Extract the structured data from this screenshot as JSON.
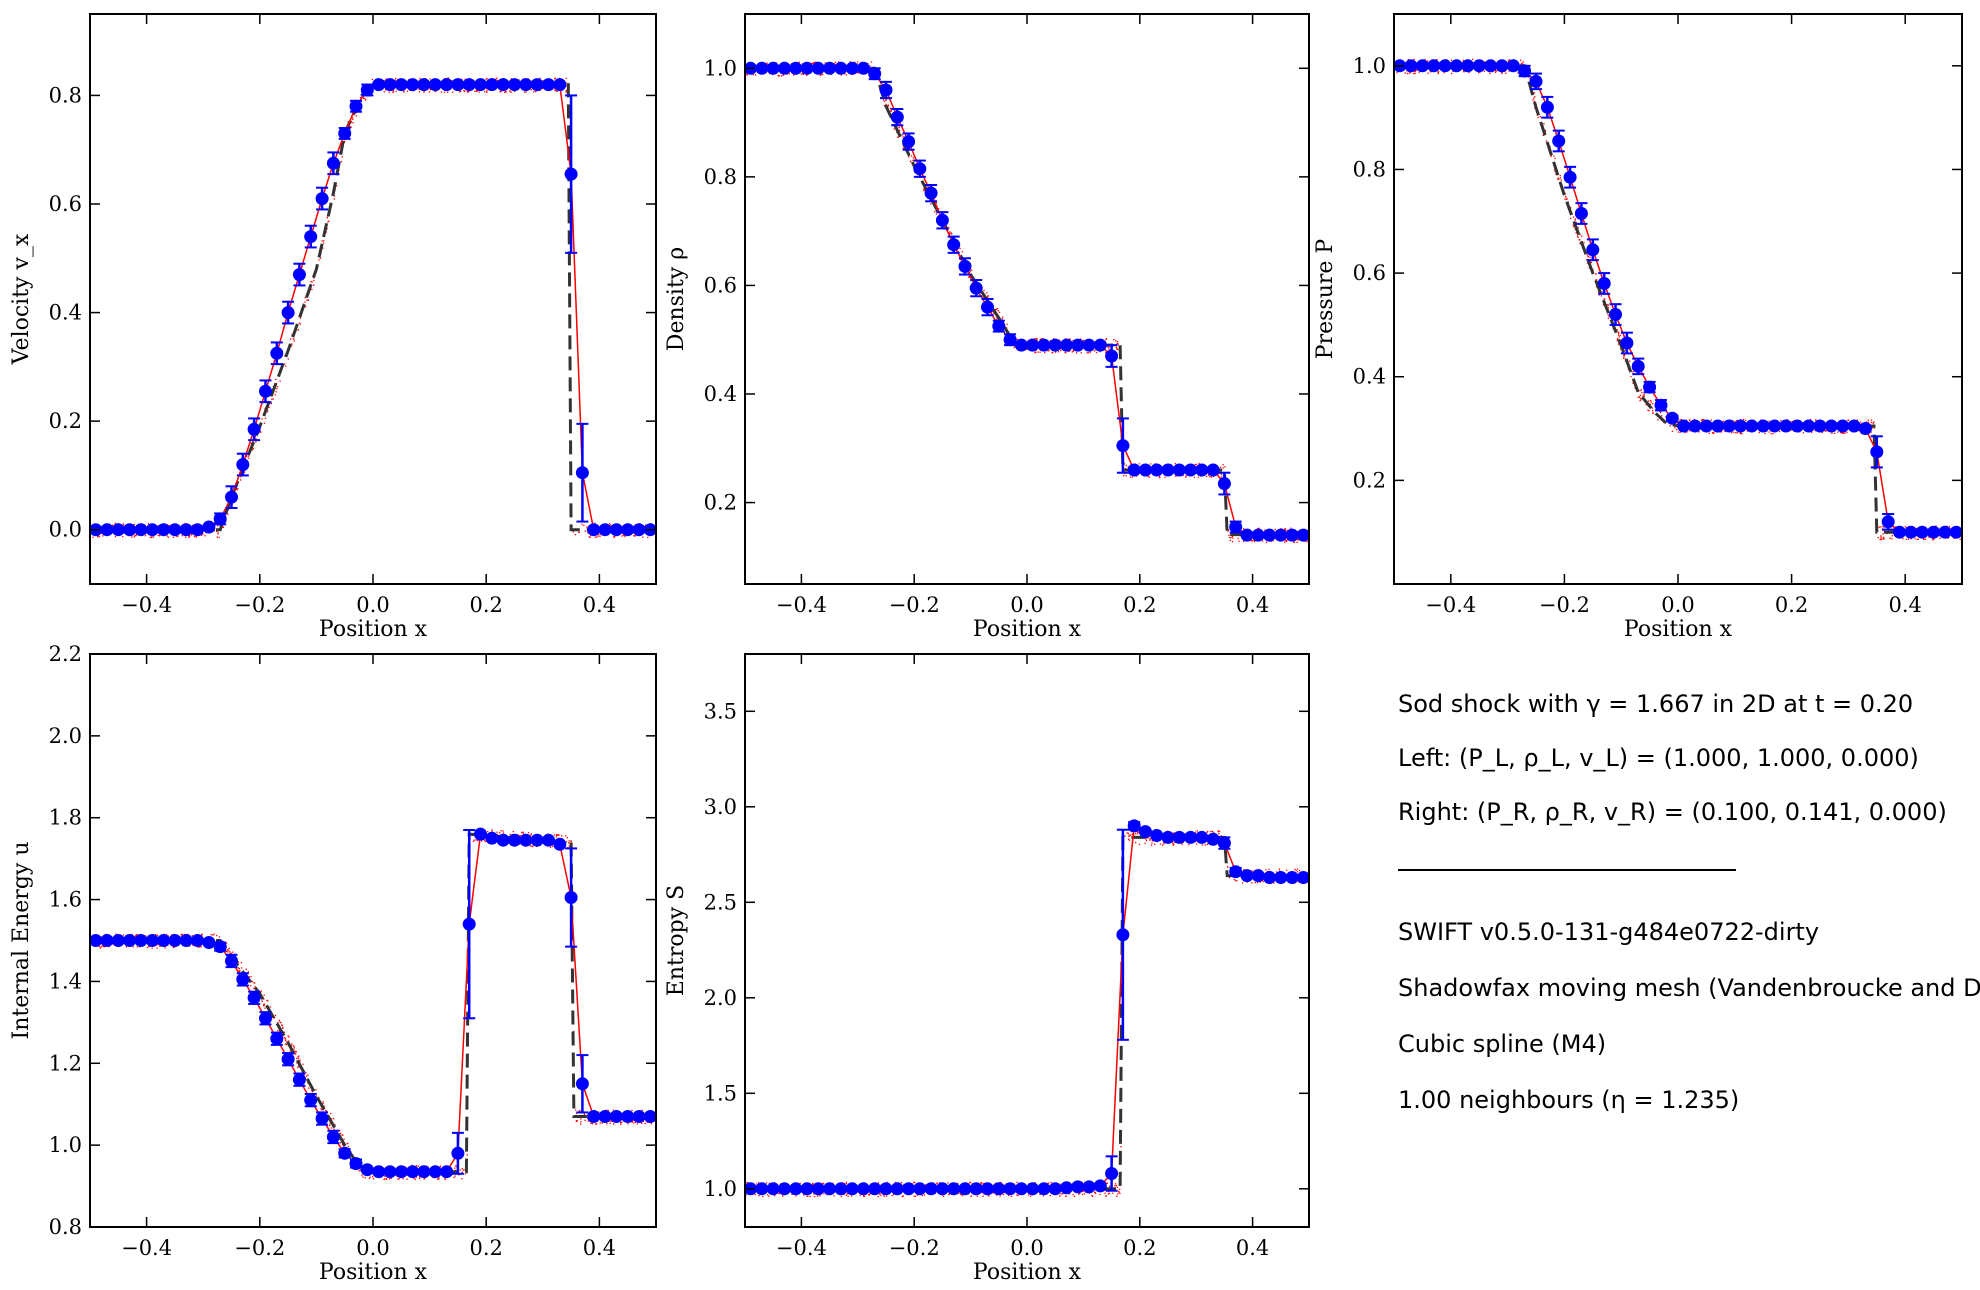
{
  "chart_data": [
    {
      "type": "scatter",
      "name": "velocity",
      "xlabel": "Position x",
      "ylabel": "Velocity v_x",
      "xlim": [
        -0.5,
        0.5
      ],
      "ylim": [
        -0.1,
        0.95
      ],
      "xticks": [
        -0.4,
        -0.2,
        0.0,
        0.2,
        0.4
      ],
      "yticks": [
        0.0,
        0.2,
        0.4,
        0.6,
        0.8
      ],
      "analytic": [
        [
          -0.5,
          0.0
        ],
        [
          -0.27,
          0.0
        ],
        [
          -0.25,
          0.06
        ],
        [
          -0.2,
          0.19
        ],
        [
          -0.15,
          0.33
        ],
        [
          -0.1,
          0.48
        ],
        [
          -0.07,
          0.62
        ],
        [
          -0.05,
          0.73
        ],
        [
          -0.02,
          0.8
        ],
        [
          0.0,
          0.82
        ],
        [
          0.34,
          0.82
        ],
        [
          0.345,
          0.82
        ],
        [
          0.35,
          0.0
        ],
        [
          0.5,
          0.0
        ]
      ],
      "series": [
        {
          "name": "binned",
          "x": [
            -0.49,
            -0.47,
            -0.45,
            -0.43,
            -0.41,
            -0.39,
            -0.37,
            -0.35,
            -0.33,
            -0.31,
            -0.29,
            -0.27,
            -0.25,
            -0.23,
            -0.21,
            -0.19,
            -0.17,
            -0.15,
            -0.13,
            -0.11,
            -0.09,
            -0.07,
            -0.05,
            -0.03,
            -0.01,
            0.01,
            0.03,
            0.05,
            0.07,
            0.09,
            0.11,
            0.13,
            0.15,
            0.17,
            0.19,
            0.21,
            0.23,
            0.25,
            0.27,
            0.29,
            0.31,
            0.33,
            0.35,
            0.37,
            0.39,
            0.41,
            0.43,
            0.45,
            0.47,
            0.49
          ],
          "y": [
            0.0,
            0.0,
            0.0,
            0.0,
            0.0,
            0.0,
            0.0,
            0.0,
            0.0,
            0.0,
            0.005,
            0.02,
            0.06,
            0.12,
            0.185,
            0.255,
            0.325,
            0.4,
            0.47,
            0.54,
            0.61,
            0.675,
            0.73,
            0.78,
            0.81,
            0.82,
            0.82,
            0.82,
            0.82,
            0.82,
            0.82,
            0.82,
            0.82,
            0.82,
            0.82,
            0.82,
            0.82,
            0.82,
            0.82,
            0.82,
            0.82,
            0.82,
            0.655,
            0.105,
            0.0,
            0.0,
            0.0,
            0.0,
            0.0,
            0.0
          ],
          "err": [
            0,
            0,
            0,
            0,
            0,
            0,
            0,
            0,
            0,
            0,
            0,
            0.01,
            0.02,
            0.02,
            0.02,
            0.02,
            0.02,
            0.02,
            0.02,
            0.02,
            0.02,
            0.02,
            0.01,
            0.01,
            0.01,
            0,
            0,
            0,
            0,
            0,
            0,
            0,
            0,
            0,
            0,
            0,
            0,
            0,
            0,
            0,
            0,
            0,
            0.145,
            0.09,
            0,
            0,
            0,
            0,
            0,
            0
          ]
        }
      ]
    },
    {
      "type": "scatter",
      "name": "density",
      "xlabel": "Position x",
      "ylabel": "Density ρ",
      "xlim": [
        -0.5,
        0.5
      ],
      "ylim": [
        0.05,
        1.1
      ],
      "xticks": [
        -0.4,
        -0.2,
        0.0,
        0.2,
        0.4
      ],
      "yticks": [
        0.2,
        0.4,
        0.6,
        0.8,
        1.0
      ],
      "analytic": [
        [
          -0.5,
          1.0
        ],
        [
          -0.27,
          1.0
        ],
        [
          -0.25,
          0.93
        ],
        [
          -0.2,
          0.82
        ],
        [
          -0.15,
          0.72
        ],
        [
          -0.1,
          0.62
        ],
        [
          -0.05,
          0.54
        ],
        [
          -0.02,
          0.49
        ],
        [
          0.0,
          0.49
        ],
        [
          0.165,
          0.49
        ],
        [
          0.17,
          0.26
        ],
        [
          0.35,
          0.26
        ],
        [
          0.355,
          0.141
        ],
        [
          0.5,
          0.141
        ]
      ],
      "series": [
        {
          "name": "binned",
          "x": [
            -0.49,
            -0.47,
            -0.45,
            -0.43,
            -0.41,
            -0.39,
            -0.37,
            -0.35,
            -0.33,
            -0.31,
            -0.29,
            -0.27,
            -0.25,
            -0.23,
            -0.21,
            -0.19,
            -0.17,
            -0.15,
            -0.13,
            -0.11,
            -0.09,
            -0.07,
            -0.05,
            -0.03,
            -0.01,
            0.01,
            0.03,
            0.05,
            0.07,
            0.09,
            0.11,
            0.13,
            0.15,
            0.17,
            0.19,
            0.21,
            0.23,
            0.25,
            0.27,
            0.29,
            0.31,
            0.33,
            0.35,
            0.37,
            0.39,
            0.41,
            0.43,
            0.45,
            0.47,
            0.49
          ],
          "y": [
            1.0,
            1.0,
            1.0,
            1.0,
            1.0,
            1.0,
            1.0,
            1.0,
            1.0,
            1.0,
            1.0,
            0.99,
            0.96,
            0.91,
            0.865,
            0.815,
            0.77,
            0.72,
            0.675,
            0.635,
            0.595,
            0.56,
            0.525,
            0.5,
            0.49,
            0.49,
            0.49,
            0.49,
            0.49,
            0.49,
            0.49,
            0.49,
            0.47,
            0.305,
            0.26,
            0.26,
            0.26,
            0.26,
            0.26,
            0.26,
            0.26,
            0.26,
            0.235,
            0.155,
            0.14,
            0.14,
            0.14,
            0.14,
            0.14,
            0.14
          ],
          "err": [
            0,
            0,
            0,
            0,
            0,
            0,
            0,
            0,
            0,
            0,
            0,
            0.01,
            0.015,
            0.015,
            0.015,
            0.015,
            0.015,
            0.015,
            0.015,
            0.015,
            0.015,
            0.015,
            0.01,
            0.01,
            0,
            0,
            0,
            0,
            0,
            0,
            0,
            0,
            0.02,
            0.05,
            0,
            0,
            0,
            0,
            0,
            0,
            0,
            0,
            0.02,
            0.01,
            0,
            0,
            0,
            0,
            0,
            0
          ]
        }
      ]
    },
    {
      "type": "scatter",
      "name": "pressure",
      "xlabel": "Position x",
      "ylabel": "Pressure P",
      "xlim": [
        -0.5,
        0.5
      ],
      "ylim": [
        0.0,
        1.1
      ],
      "xticks": [
        -0.4,
        -0.2,
        0.0,
        0.2,
        0.4
      ],
      "yticks": [
        0.2,
        0.4,
        0.6,
        0.8,
        1.0
      ],
      "analytic": [
        [
          -0.5,
          1.0
        ],
        [
          -0.27,
          1.0
        ],
        [
          -0.25,
          0.92
        ],
        [
          -0.2,
          0.75
        ],
        [
          -0.15,
          0.6
        ],
        [
          -0.1,
          0.46
        ],
        [
          -0.07,
          0.37
        ],
        [
          -0.04,
          0.33
        ],
        [
          -0.02,
          0.31
        ],
        [
          0.0,
          0.305
        ],
        [
          0.34,
          0.305
        ],
        [
          0.345,
          0.305
        ],
        [
          0.35,
          0.1
        ],
        [
          0.5,
          0.1
        ]
      ],
      "series": [
        {
          "name": "binned",
          "x": [
            -0.49,
            -0.47,
            -0.45,
            -0.43,
            -0.41,
            -0.39,
            -0.37,
            -0.35,
            -0.33,
            -0.31,
            -0.29,
            -0.27,
            -0.25,
            -0.23,
            -0.21,
            -0.19,
            -0.17,
            -0.15,
            -0.13,
            -0.11,
            -0.09,
            -0.07,
            -0.05,
            -0.03,
            -0.01,
            0.01,
            0.03,
            0.05,
            0.07,
            0.09,
            0.11,
            0.13,
            0.15,
            0.17,
            0.19,
            0.21,
            0.23,
            0.25,
            0.27,
            0.29,
            0.31,
            0.33,
            0.35,
            0.37,
            0.39,
            0.41,
            0.43,
            0.45,
            0.47,
            0.49
          ],
          "y": [
            1.0,
            1.0,
            1.0,
            1.0,
            1.0,
            1.0,
            1.0,
            1.0,
            1.0,
            1.0,
            1.0,
            0.99,
            0.97,
            0.92,
            0.855,
            0.785,
            0.715,
            0.645,
            0.58,
            0.52,
            0.465,
            0.42,
            0.38,
            0.345,
            0.32,
            0.305,
            0.305,
            0.305,
            0.305,
            0.305,
            0.305,
            0.305,
            0.305,
            0.305,
            0.305,
            0.305,
            0.305,
            0.305,
            0.305,
            0.305,
            0.305,
            0.3,
            0.255,
            0.12,
            0.1,
            0.1,
            0.1,
            0.1,
            0.1,
            0.1
          ],
          "err": [
            0,
            0,
            0,
            0,
            0,
            0,
            0,
            0,
            0,
            0,
            0,
            0.01,
            0.015,
            0.02,
            0.02,
            0.02,
            0.02,
            0.02,
            0.02,
            0.02,
            0.02,
            0.015,
            0.01,
            0.01,
            0.005,
            0,
            0,
            0,
            0,
            0,
            0,
            0,
            0,
            0,
            0,
            0,
            0,
            0,
            0,
            0,
            0,
            0,
            0.03,
            0.015,
            0,
            0,
            0,
            0,
            0,
            0
          ]
        }
      ]
    },
    {
      "type": "scatter",
      "name": "internal-energy",
      "xlabel": "Position x",
      "ylabel": "Internal Energy u",
      "xlim": [
        -0.5,
        0.5
      ],
      "ylim": [
        0.8,
        2.2
      ],
      "xticks": [
        -0.4,
        -0.2,
        0.0,
        0.2,
        0.4
      ],
      "yticks": [
        0.8,
        1.0,
        1.2,
        1.4,
        1.6,
        1.8,
        2.0,
        2.2
      ],
      "analytic": [
        [
          -0.5,
          1.5
        ],
        [
          -0.27,
          1.5
        ],
        [
          -0.25,
          1.46
        ],
        [
          -0.2,
          1.37
        ],
        [
          -0.15,
          1.25
        ],
        [
          -0.1,
          1.12
        ],
        [
          -0.05,
          1.0
        ],
        [
          -0.02,
          0.94
        ],
        [
          0.0,
          0.935
        ],
        [
          0.165,
          0.935
        ],
        [
          0.17,
          1.76
        ],
        [
          0.35,
          1.74
        ],
        [
          0.355,
          1.07
        ],
        [
          0.5,
          1.07
        ]
      ],
      "series": [
        {
          "name": "binned",
          "x": [
            -0.49,
            -0.47,
            -0.45,
            -0.43,
            -0.41,
            -0.39,
            -0.37,
            -0.35,
            -0.33,
            -0.31,
            -0.29,
            -0.27,
            -0.25,
            -0.23,
            -0.21,
            -0.19,
            -0.17,
            -0.15,
            -0.13,
            -0.11,
            -0.09,
            -0.07,
            -0.05,
            -0.03,
            -0.01,
            0.01,
            0.03,
            0.05,
            0.07,
            0.09,
            0.11,
            0.13,
            0.15,
            0.17,
            0.19,
            0.21,
            0.23,
            0.25,
            0.27,
            0.29,
            0.31,
            0.33,
            0.35,
            0.37,
            0.39,
            0.41,
            0.43,
            0.45,
            0.47,
            0.49
          ],
          "y": [
            1.5,
            1.5,
            1.5,
            1.5,
            1.5,
            1.5,
            1.5,
            1.5,
            1.5,
            1.5,
            1.495,
            1.485,
            1.45,
            1.405,
            1.36,
            1.31,
            1.26,
            1.21,
            1.16,
            1.11,
            1.065,
            1.02,
            0.98,
            0.955,
            0.94,
            0.935,
            0.935,
            0.935,
            0.935,
            0.935,
            0.935,
            0.935,
            0.98,
            1.54,
            1.76,
            1.75,
            1.745,
            1.745,
            1.745,
            1.745,
            1.745,
            1.735,
            1.605,
            1.15,
            1.07,
            1.07,
            1.07,
            1.07,
            1.07,
            1.07
          ],
          "err": [
            0,
            0,
            0,
            0,
            0,
            0,
            0,
            0,
            0,
            0,
            0,
            0.01,
            0.015,
            0.015,
            0.015,
            0.015,
            0.015,
            0.015,
            0.015,
            0.015,
            0.015,
            0.015,
            0.01,
            0.01,
            0,
            0,
            0,
            0,
            0,
            0,
            0,
            0,
            0.05,
            0.23,
            0,
            0,
            0,
            0,
            0,
            0,
            0,
            0,
            0.12,
            0.07,
            0,
            0,
            0,
            0,
            0,
            0
          ]
        }
      ]
    },
    {
      "type": "scatter",
      "name": "entropy",
      "xlabel": "Position x",
      "ylabel": "Entropy S",
      "xlim": [
        -0.5,
        0.5
      ],
      "ylim": [
        0.8,
        3.8
      ],
      "xticks": [
        -0.4,
        -0.2,
        0.0,
        0.2,
        0.4
      ],
      "yticks": [
        1.0,
        1.5,
        2.0,
        2.5,
        3.0,
        3.5
      ],
      "analytic": [
        [
          -0.5,
          1.0
        ],
        [
          0.165,
          1.0
        ],
        [
          0.17,
          2.84
        ],
        [
          0.35,
          2.84
        ],
        [
          0.355,
          2.64
        ],
        [
          0.5,
          2.64
        ]
      ],
      "series": [
        {
          "name": "binned",
          "x": [
            -0.49,
            -0.47,
            -0.45,
            -0.43,
            -0.41,
            -0.39,
            -0.37,
            -0.35,
            -0.33,
            -0.31,
            -0.29,
            -0.27,
            -0.25,
            -0.23,
            -0.21,
            -0.19,
            -0.17,
            -0.15,
            -0.13,
            -0.11,
            -0.09,
            -0.07,
            -0.05,
            -0.03,
            -0.01,
            0.01,
            0.03,
            0.05,
            0.07,
            0.09,
            0.11,
            0.13,
            0.15,
            0.17,
            0.19,
            0.21,
            0.23,
            0.25,
            0.27,
            0.29,
            0.31,
            0.33,
            0.35,
            0.37,
            0.39,
            0.41,
            0.43,
            0.45,
            0.47,
            0.49
          ],
          "y": [
            1.0,
            1.0,
            1.0,
            1.0,
            1.0,
            1.0,
            1.0,
            1.0,
            1.0,
            1.0,
            1.0,
            1.0,
            1.0,
            1.0,
            1.0,
            1.0,
            1.0,
            1.0,
            1.0,
            1.0,
            1.0,
            1.0,
            1.0,
            1.0,
            1.0,
            1.0,
            1.0,
            1.0,
            1.005,
            1.01,
            1.01,
            1.015,
            1.08,
            2.33,
            2.9,
            2.87,
            2.85,
            2.84,
            2.84,
            2.84,
            2.84,
            2.83,
            2.81,
            2.66,
            2.64,
            2.64,
            2.63,
            2.63,
            2.63,
            2.63
          ],
          "err": [
            0,
            0,
            0,
            0,
            0,
            0,
            0,
            0,
            0,
            0,
            0,
            0,
            0,
            0,
            0,
            0,
            0,
            0,
            0,
            0,
            0,
            0,
            0,
            0,
            0,
            0,
            0,
            0,
            0,
            0,
            0,
            0,
            0.09,
            0.55,
            0.02,
            0,
            0,
            0,
            0,
            0,
            0,
            0,
            0.03,
            0.02,
            0,
            0,
            0,
            0,
            0,
            0
          ]
        }
      ]
    }
  ],
  "info": {
    "line1": "Sod shock with γ = 1.667 in 2D at t = 0.20",
    "line2": "Left:   (P_L, ρ_L, v_L) = (1.000, 1.000, 0.000)",
    "line3": "Right: (P_R, ρ_R, v_R) = (0.100, 0.141, 0.000)",
    "line4": "SWIFT v0.5.0-131-g484e0722-dirty",
    "line5": "Shadowfax moving mesh (Vandenbroucke and De",
    "line6": "Cubic spline (M4)",
    "line7": "1.00 neighbours (η = 1.235)"
  },
  "colors": {
    "analytic": "#333333",
    "particles": "#ff0000",
    "binned": "#0000ff"
  }
}
